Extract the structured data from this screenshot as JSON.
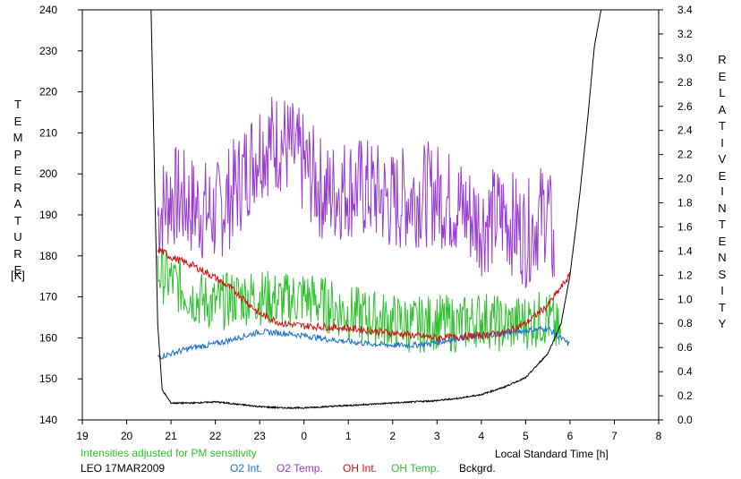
{
  "chart_data": {
    "type": "line",
    "xlabel": "Local Standard Time [h]",
    "x_ticks": [
      "19",
      "20",
      "21",
      "22",
      "23",
      "0",
      "1",
      "2",
      "3",
      "4",
      "5",
      "6",
      "7",
      "8"
    ],
    "x_range_hours": [
      19,
      32
    ],
    "left_axis": {
      "label_letters": [
        "T",
        "E",
        "M",
        "P",
        "E",
        "R",
        "A",
        "T",
        "U",
        "R",
        "E"
      ],
      "unit": "[K]",
      "range": [
        140,
        240
      ],
      "ticks": [
        "140",
        "150",
        "160",
        "170",
        "180",
        "190",
        "200",
        "210",
        "220",
        "230",
        "240"
      ]
    },
    "right_axis": {
      "label1_letters": [
        "R",
        "E",
        "L",
        "A",
        "T",
        "I",
        "V",
        "E"
      ],
      "label2_letters": [
        "I",
        "N",
        "T",
        "E",
        "N",
        "S",
        "I",
        "T",
        "Y"
      ],
      "range": [
        0.0,
        3.4
      ],
      "ticks": [
        "0.0",
        "0.2",
        "0.4",
        "0.6",
        "0.8",
        "1.0",
        "1.2",
        "1.4",
        "1.6",
        "1.8",
        "2.0",
        "2.2",
        "2.4",
        "2.6",
        "2.8",
        "3.0",
        "3.2",
        "3.4"
      ]
    },
    "grid": false,
    "note": "Intensities adjusted for PM sensitivity",
    "station_date": "LEO 17MAR2009",
    "series": [
      {
        "name": "O2 Int.",
        "axis": "right",
        "color": "#1a6fd0",
        "x": [
          20.7,
          21.0,
          21.5,
          22.0,
          22.5,
          23.0,
          23.5,
          24.0,
          24.5,
          25.0,
          25.5,
          26.0,
          26.5,
          27.0,
          27.5,
          28.0,
          28.5,
          29.0,
          29.5,
          30.0
        ],
        "y": [
          0.52,
          0.55,
          0.6,
          0.63,
          0.68,
          0.73,
          0.72,
          0.7,
          0.67,
          0.65,
          0.63,
          0.62,
          0.62,
          0.64,
          0.68,
          0.7,
          0.72,
          0.74,
          0.76,
          0.62
        ]
      },
      {
        "name": "O2 Temp.",
        "axis": "left",
        "color": "#9a3cd0",
        "x": [
          20.7,
          21.0,
          21.5,
          22.0,
          22.5,
          23.0,
          23.5,
          24.0,
          24.5,
          25.0,
          25.5,
          26.0,
          26.5,
          27.0,
          27.5,
          28.0,
          28.5,
          29.0,
          29.5,
          29.65
        ],
        "y": [
          190,
          195,
          192,
          190,
          197,
          207,
          208,
          202,
          195,
          197,
          196,
          193,
          195,
          195,
          192,
          188,
          190,
          185,
          192,
          180
        ]
      },
      {
        "name": "OH Int.",
        "axis": "right",
        "color": "#d01010",
        "x": [
          20.7,
          21.0,
          21.5,
          22.0,
          22.5,
          23.0,
          23.5,
          24.0,
          24.5,
          25.0,
          25.5,
          26.0,
          26.5,
          27.0,
          27.5,
          28.0,
          28.5,
          29.0,
          29.5,
          30.0
        ],
        "y": [
          1.42,
          1.35,
          1.28,
          1.18,
          1.05,
          0.88,
          0.8,
          0.78,
          0.77,
          0.76,
          0.74,
          0.72,
          0.7,
          0.68,
          0.69,
          0.7,
          0.72,
          0.8,
          0.95,
          1.2
        ]
      },
      {
        "name": "OH Temp.",
        "axis": "left",
        "color": "#30c030",
        "x": [
          20.7,
          21.0,
          21.5,
          22.0,
          22.5,
          23.0,
          23.5,
          24.0,
          24.5,
          25.0,
          25.5,
          26.0,
          26.5,
          27.0,
          27.5,
          28.0,
          28.5,
          29.0,
          29.5,
          29.8
        ],
        "y": [
          176,
          174,
          170,
          168,
          170,
          170,
          169,
          170,
          168,
          166,
          165,
          164,
          163,
          164,
          163,
          165,
          163,
          164,
          165,
          160
        ]
      },
      {
        "name": "Bckgrd.",
        "axis": "right",
        "color": "#000000",
        "x": [
          20.55,
          20.7,
          20.8,
          21.0,
          21.5,
          22.0,
          22.5,
          23.0,
          23.5,
          24.0,
          24.5,
          25.0,
          25.5,
          26.0,
          26.5,
          27.0,
          27.5,
          28.0,
          28.5,
          29.0,
          29.5,
          29.8,
          30.0,
          30.2,
          30.4,
          30.55,
          30.7
        ],
        "y": [
          3.4,
          0.8,
          0.25,
          0.14,
          0.14,
          0.15,
          0.13,
          0.11,
          0.1,
          0.1,
          0.11,
          0.12,
          0.13,
          0.14,
          0.15,
          0.16,
          0.18,
          0.21,
          0.27,
          0.35,
          0.55,
          0.8,
          1.2,
          1.8,
          2.5,
          3.1,
          3.4
        ]
      }
    ]
  }
}
